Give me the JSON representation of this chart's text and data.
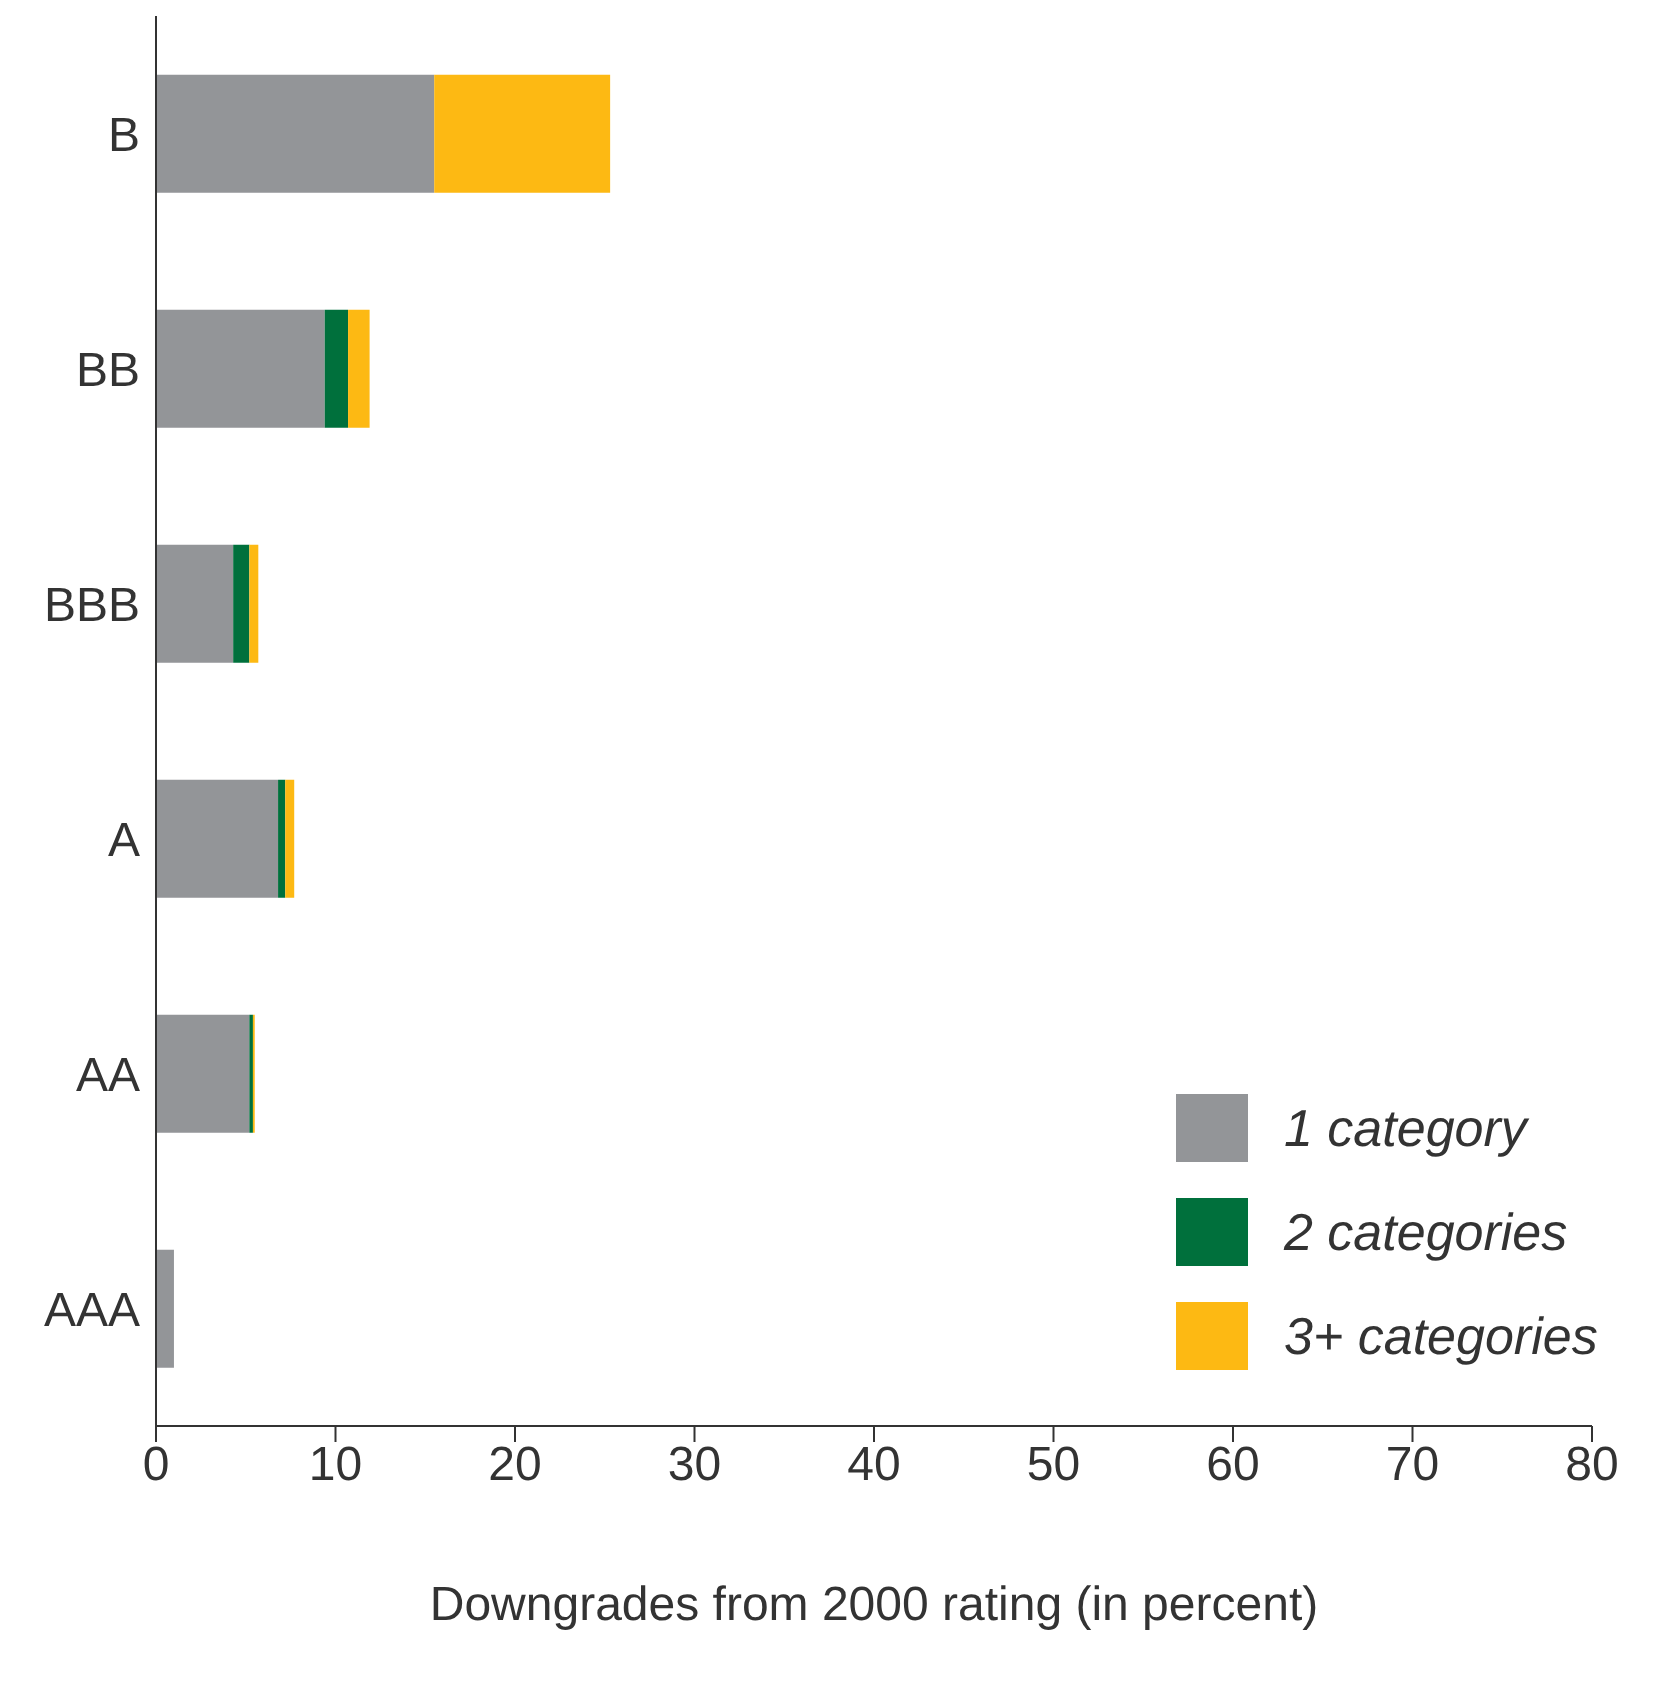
{
  "chart_data": {
    "type": "bar",
    "orientation": "horizontal",
    "stacked": true,
    "xlabel": "Downgrades from 2000 rating (in percent)",
    "categories": [
      "B",
      "BB",
      "BBB",
      "A",
      "AA",
      "AAA"
    ],
    "series": [
      {
        "name": "1 category",
        "color": "#939598",
        "values": [
          15.5,
          9.4,
          4.3,
          6.8,
          5.2,
          1.0
        ]
      },
      {
        "name": "2 categories",
        "color": "#00703c",
        "values": [
          0,
          1.3,
          0.9,
          0.4,
          0.2,
          0
        ]
      },
      {
        "name": "3+ categories",
        "color": "#fdb913",
        "values": [
          9.8,
          1.2,
          0.5,
          0.5,
          0.1,
          0
        ]
      }
    ],
    "xlim": [
      0,
      80
    ],
    "xticks": [
      0,
      10,
      20,
      30,
      40,
      50,
      60,
      70,
      80
    ],
    "grid": false,
    "legend": "bottom right"
  }
}
